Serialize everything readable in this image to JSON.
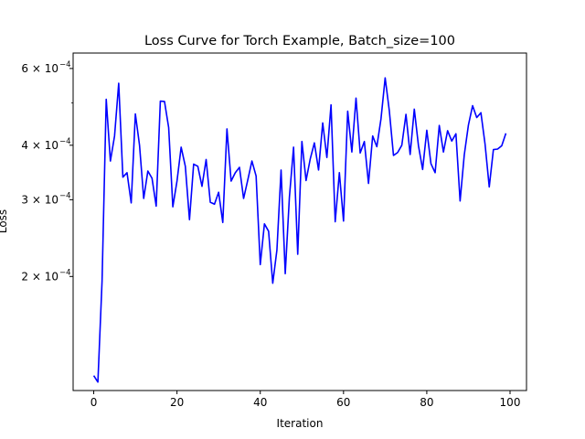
{
  "chart_data": {
    "type": "line",
    "title": "Loss Curve for Torch Example, Batch_size=100",
    "xlabel": "Iteration",
    "ylabel": "Loss",
    "yscale": "log",
    "xlim": [
      -4.95,
      103.95
    ],
    "ylim": [
      0.0001095,
      0.000651
    ],
    "grid": false,
    "x_ticks": [
      {
        "value": 0,
        "label": "0"
      },
      {
        "value": 20,
        "label": "20"
      },
      {
        "value": 40,
        "label": "40"
      },
      {
        "value": 60,
        "label": "60"
      },
      {
        "value": 80,
        "label": "80"
      },
      {
        "value": 100,
        "label": "100"
      }
    ],
    "y_ticks": [
      {
        "value": 0.0002,
        "label": "2 × 10",
        "exp": "−4"
      },
      {
        "value": 0.0003,
        "label": "3 × 10",
        "exp": "−4"
      },
      {
        "value": 0.0004,
        "label": "4 × 10",
        "exp": "−4"
      },
      {
        "value": 0.0006,
        "label": "6 × 10",
        "exp": "−4"
      }
    ],
    "y_minor_ticks": [
      0.0005
    ],
    "series": [
      {
        "color": "#0000ff",
        "x": [
          0,
          1,
          2,
          3,
          4,
          5,
          6,
          7,
          8,
          9,
          10,
          11,
          12,
          13,
          14,
          15,
          16,
          17,
          18,
          19,
          20,
          21,
          22,
          23,
          24,
          25,
          26,
          27,
          28,
          29,
          30,
          31,
          32,
          33,
          34,
          35,
          36,
          37,
          38,
          39,
          40,
          41,
          42,
          43,
          44,
          45,
          46,
          47,
          48,
          49,
          50,
          51,
          52,
          53,
          54,
          55,
          56,
          57,
          58,
          59,
          60,
          61,
          62,
          63,
          64,
          65,
          66,
          67,
          68,
          69,
          70,
          71,
          72,
          73,
          74,
          75,
          76,
          77,
          78,
          79,
          80,
          81,
          82,
          83,
          84,
          85,
          86,
          87,
          88,
          89,
          90,
          91,
          92,
          93,
          94,
          95,
          96,
          97,
          98,
          99
        ],
        "values": [
          0.0001185,
          0.0001145,
          0.000195,
          0.00051,
          0.000368,
          0.00042,
          0.000555,
          0.000338,
          0.000346,
          0.000295,
          0.000472,
          0.0004,
          0.000302,
          0.000349,
          0.000336,
          0.00029,
          0.000505,
          0.000504,
          0.000439,
          0.000289,
          0.000331,
          0.000396,
          0.000358,
          0.00027,
          0.000362,
          0.000358,
          0.000322,
          0.000371,
          0.000296,
          0.000293,
          0.000312,
          0.000266,
          0.000436,
          0.000331,
          0.000346,
          0.000356,
          0.000302,
          0.000333,
          0.000368,
          0.00034,
          0.000213,
          0.000264,
          0.000254,
          0.000193,
          0.00023,
          0.000351,
          0.000203,
          0.000304,
          0.000396,
          0.000225,
          0.000408,
          0.000332,
          0.000372,
          0.000405,
          0.000351,
          0.00045,
          0.000375,
          0.000495,
          0.000267,
          0.000346,
          0.000268,
          0.000479,
          0.000386,
          0.000513,
          0.000384,
          0.000408,
          0.000327,
          0.00042,
          0.000397,
          0.00046,
          0.000571,
          0.00048,
          0.000379,
          0.000385,
          0.0004,
          0.000471,
          0.000381,
          0.000484,
          0.000399,
          0.000352,
          0.000433,
          0.000363,
          0.000346,
          0.000444,
          0.000386,
          0.000432,
          0.000409,
          0.000425,
          0.000298,
          0.00038,
          0.000445,
          0.000493,
          0.000463,
          0.000475,
          0.000402,
          0.000321,
          0.000391,
          0.000392,
          0.000399,
          0.000426
        ]
      }
    ]
  }
}
